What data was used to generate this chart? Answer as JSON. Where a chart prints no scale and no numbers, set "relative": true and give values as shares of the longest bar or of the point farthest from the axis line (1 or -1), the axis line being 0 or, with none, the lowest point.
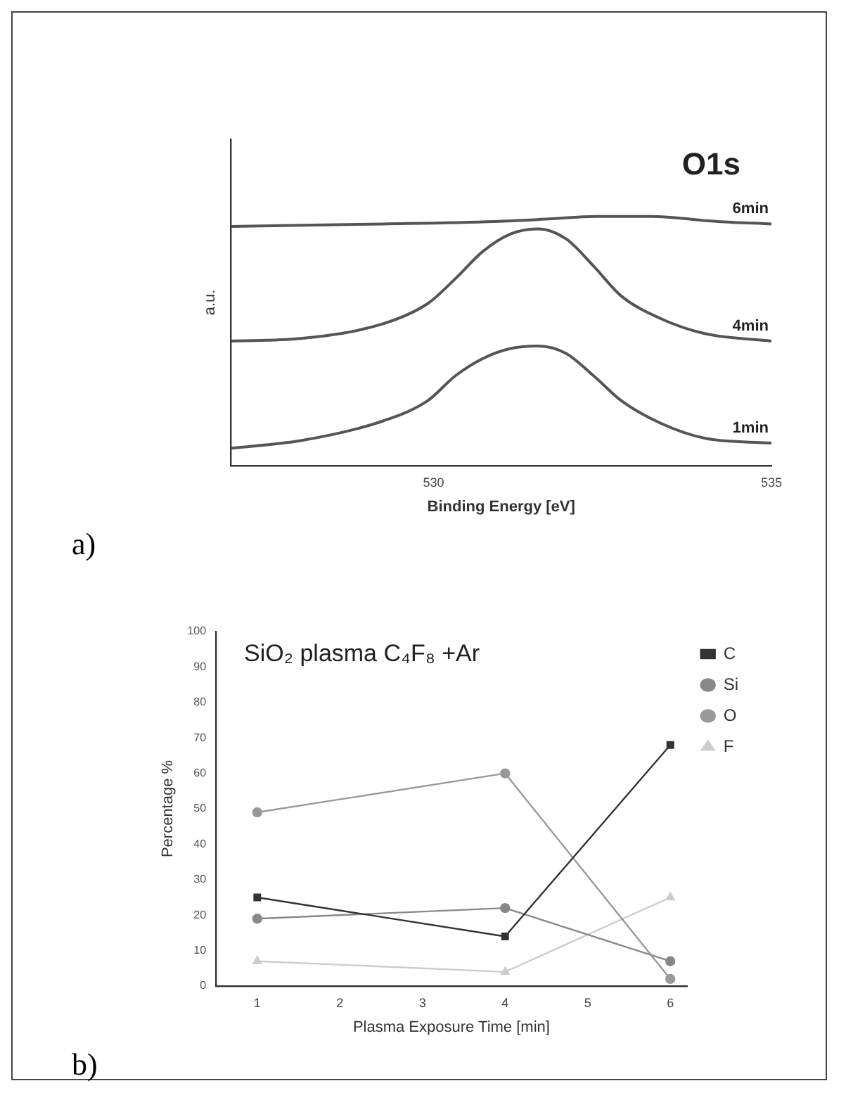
{
  "chart_data": [
    {
      "type": "line",
      "title": "O1s",
      "xlabel": "Binding Energy [eV]",
      "ylabel": "a.u.",
      "relative": true,
      "xlim": [
        527,
        535
      ],
      "xticks": [
        530,
        535
      ],
      "grid": false,
      "legend": false,
      "marker": "none",
      "annotations": [
        "a)"
      ],
      "series": [
        {
          "name": "6min",
          "color": "#555555",
          "x": [
            527.0,
            529.26,
            530.9,
            531.7,
            532.4,
            533.2,
            534.2,
            535.0
          ],
          "values": [
            0.96,
            0.97,
            0.98,
            0.99,
            1.0,
            1.0,
            0.98,
            0.97
          ]
        },
        {
          "name": "4min",
          "color": "#555555",
          "x": [
            527.0,
            528.03,
            529.26,
            529.91,
            530.32,
            530.73,
            531.14,
            531.55,
            531.96,
            532.37,
            532.78,
            533.36,
            534.01,
            535.0
          ],
          "values": [
            0.5,
            0.51,
            0.57,
            0.65,
            0.75,
            0.86,
            0.93,
            0.95,
            0.91,
            0.8,
            0.68,
            0.59,
            0.53,
            0.5
          ]
        },
        {
          "name": "1min",
          "color": "#555555",
          "x": [
            527.0,
            528.03,
            529.26,
            529.91,
            530.32,
            530.73,
            531.14,
            531.55,
            531.96,
            532.37,
            532.78,
            533.36,
            534.01,
            535.0
          ],
          "values": [
            0.07,
            0.1,
            0.18,
            0.26,
            0.36,
            0.43,
            0.47,
            0.48,
            0.45,
            0.36,
            0.26,
            0.17,
            0.11,
            0.09
          ]
        }
      ]
    },
    {
      "type": "line",
      "title": "SiO₂ plasma C₄F₈ +Ar",
      "xlabel": "Plasma Exposure Time [min]",
      "ylabel": "Percentage %",
      "xlim": [
        0.5,
        6.2
      ],
      "xticks": [
        1,
        2,
        3,
        4,
        5,
        6
      ],
      "ylim": [
        0,
        100
      ],
      "yticks": [
        0,
        10,
        20,
        30,
        40,
        50,
        60,
        70,
        80,
        90,
        100
      ],
      "grid": false,
      "legend": "top right",
      "annotations": [
        "b)"
      ],
      "x": [
        1,
        4,
        6
      ],
      "series": [
        {
          "name": "C",
          "color": "#333333",
          "marker": "square",
          "values": [
            25,
            14,
            68
          ]
        },
        {
          "name": "Si",
          "color": "#888888",
          "marker": "circle",
          "values": [
            19,
            22,
            7
          ]
        },
        {
          "name": "O",
          "color": "#999999",
          "marker": "circle",
          "values": [
            49,
            60,
            2
          ]
        },
        {
          "name": "F",
          "color": "#cccccc",
          "marker": "triangle",
          "values": [
            7,
            4,
            25
          ]
        }
      ]
    }
  ]
}
